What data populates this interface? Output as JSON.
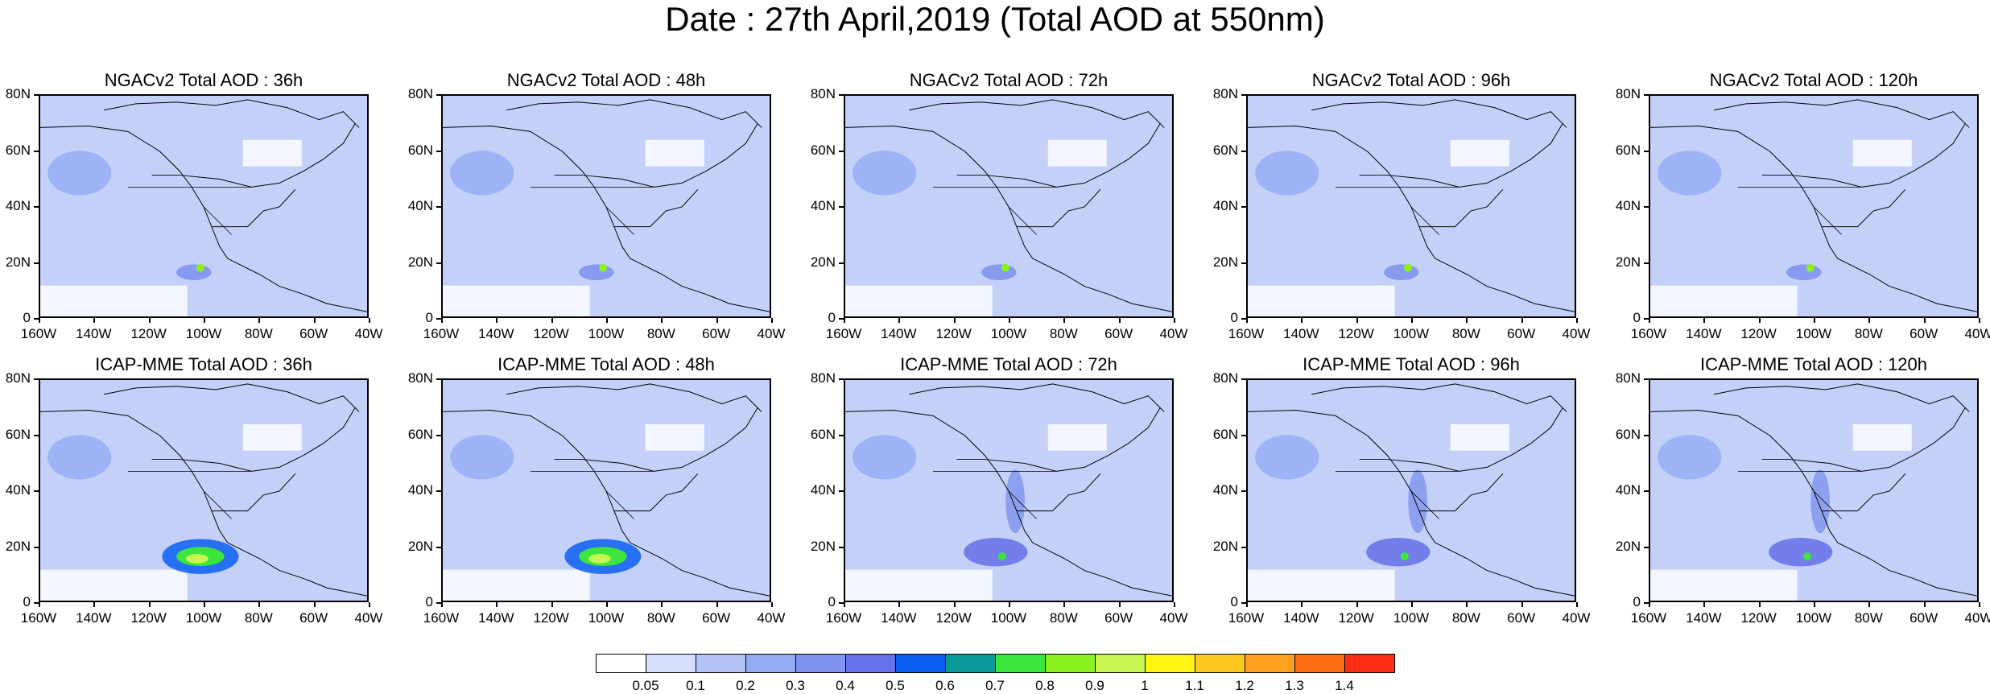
{
  "title": "Date : 27th April,2019 (Total AOD at 550nm)",
  "panels": [
    {
      "title": "NGACv2 Total AOD : 36h",
      "hotspot": "low"
    },
    {
      "title": "NGACv2 Total AOD : 48h",
      "hotspot": "low"
    },
    {
      "title": "NGACv2 Total AOD : 72h",
      "hotspot": "low"
    },
    {
      "title": "NGACv2 Total AOD : 96h",
      "hotspot": "low"
    },
    {
      "title": "NGACv2 Total AOD : 120h",
      "hotspot": "low"
    },
    {
      "title": "ICAP-MME Total AOD : 36h",
      "hotspot": "high"
    },
    {
      "title": "ICAP-MME Total AOD : 48h",
      "hotspot": "high"
    },
    {
      "title": "ICAP-MME Total AOD : 72h",
      "hotspot": "medium"
    },
    {
      "title": "ICAP-MME Total AOD : 96h",
      "hotspot": "medium"
    },
    {
      "title": "ICAP-MME Total AOD : 120h",
      "hotspot": "medium"
    }
  ],
  "y_ticks": [
    "80N",
    "60N",
    "40N",
    "20N",
    "0"
  ],
  "x_ticks": [
    "160W",
    "140W",
    "120W",
    "100W",
    "80W",
    "60W",
    "40W"
  ],
  "colorbar": {
    "labels": [
      "0.05",
      "0.1",
      "0.2",
      "0.3",
      "0.4",
      "0.5",
      "0.6",
      "0.7",
      "0.8",
      "0.9",
      "1",
      "1.1",
      "1.2",
      "1.3",
      "1.4"
    ],
    "colors": [
      "#ffffff",
      "#d5defb",
      "#b4c3f7",
      "#95abf4",
      "#7f93ee",
      "#6670e8",
      "#0a5ff0",
      "#0a9a9a",
      "#3ce63c",
      "#8cf01e",
      "#c8f550",
      "#fff514",
      "#ffc81e",
      "#ffa01e",
      "#ff6e14",
      "#ff2d14"
    ]
  }
}
